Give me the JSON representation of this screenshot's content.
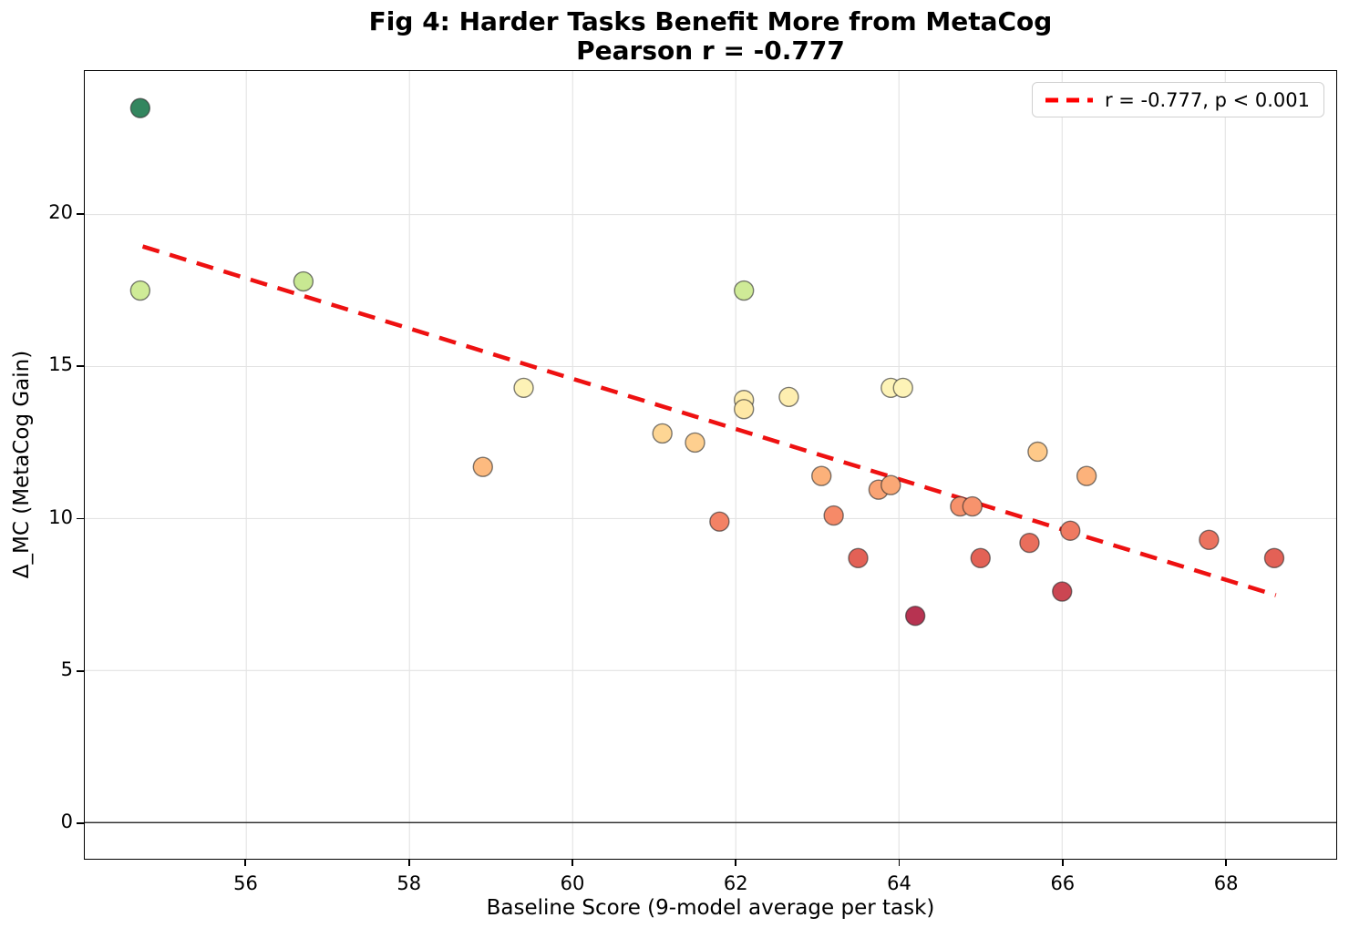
{
  "title": {
    "line1": "Fig 4: Harder Tasks Benefit More from MetaCog",
    "line2": "Pearson r = -0.777"
  },
  "legend": {
    "label": "r = -0.777, p < 0.001",
    "line_color": "#ff0000"
  },
  "chart_data": {
    "type": "scatter",
    "title": "Fig 4: Harder Tasks Benefit More from MetaCog\nPearson r = -0.777",
    "xlabel": "Baseline Score (9-model average per task)",
    "ylabel": "Δ_MC (MetaCog Gain)",
    "xlim": [
      54.02,
      69.36
    ],
    "ylim": [
      -1.19,
      24.72
    ],
    "x_ticks": [
      56,
      58,
      60,
      62,
      64,
      66,
      68
    ],
    "y_ticks": [
      0,
      5,
      10,
      15,
      20
    ],
    "grid": true,
    "legend_position": "upper right",
    "pearson_r": -0.777,
    "p_value_text": "p < 0.001",
    "colors": {
      "trend": "#ee1111",
      "zero_line": "#111111",
      "grid": "#e3e3e3",
      "point_edge": "#2b2b2b"
    },
    "trend_line": {
      "x1": 54.73,
      "y1": 18.95,
      "x2": 68.62,
      "y2": 7.48,
      "style": "dashed",
      "label": "r = -0.777, p < 0.001"
    },
    "points": [
      {
        "x": 54.7,
        "y": 23.5,
        "color": "#33865F"
      },
      {
        "x": 54.7,
        "y": 17.5,
        "color": "#CFEB97"
      },
      {
        "x": 56.7,
        "y": 17.8,
        "color": "#C8E892"
      },
      {
        "x": 59.4,
        "y": 14.3,
        "color": "#FDF2B6"
      },
      {
        "x": 58.9,
        "y": 11.7,
        "color": "#FDBA7F"
      },
      {
        "x": 61.1,
        "y": 12.8,
        "color": "#FED694"
      },
      {
        "x": 61.5,
        "y": 12.5,
        "color": "#FECF8F"
      },
      {
        "x": 61.8,
        "y": 9.9,
        "color": "#F38265"
      },
      {
        "x": 62.1,
        "y": 17.5,
        "color": "#CFEB97"
      },
      {
        "x": 62.1,
        "y": 13.9,
        "color": "#FEEDAD"
      },
      {
        "x": 62.1,
        "y": 13.6,
        "color": "#FEE8A6"
      },
      {
        "x": 62.65,
        "y": 14.0,
        "color": "#FEEEB0"
      },
      {
        "x": 63.05,
        "y": 11.4,
        "color": "#FCB17A"
      },
      {
        "x": 63.2,
        "y": 10.1,
        "color": "#F68A68"
      },
      {
        "x": 63.5,
        "y": 8.7,
        "color": "#E36156"
      },
      {
        "x": 63.75,
        "y": 10.95,
        "color": "#FAA374"
      },
      {
        "x": 63.9,
        "y": 11.1,
        "color": "#FAA876"
      },
      {
        "x": 63.9,
        "y": 14.3,
        "color": "#FDF3B7"
      },
      {
        "x": 64.05,
        "y": 14.3,
        "color": "#FDF3B7"
      },
      {
        "x": 64.2,
        "y": 6.8,
        "color": "#B73351"
      },
      {
        "x": 64.75,
        "y": 10.4,
        "color": "#F7926C"
      },
      {
        "x": 64.9,
        "y": 10.4,
        "color": "#F7936D"
      },
      {
        "x": 65.0,
        "y": 8.7,
        "color": "#E36256"
      },
      {
        "x": 65.6,
        "y": 9.2,
        "color": "#E96E5C"
      },
      {
        "x": 65.7,
        "y": 12.2,
        "color": "#FEC989"
      },
      {
        "x": 66.0,
        "y": 7.6,
        "color": "#CB4652"
      },
      {
        "x": 66.1,
        "y": 9.6,
        "color": "#EF7A61"
      },
      {
        "x": 66.3,
        "y": 11.4,
        "color": "#FCB27B"
      },
      {
        "x": 67.8,
        "y": 9.3,
        "color": "#EB725E"
      },
      {
        "x": 68.6,
        "y": 8.7,
        "color": "#E36156"
      }
    ]
  }
}
